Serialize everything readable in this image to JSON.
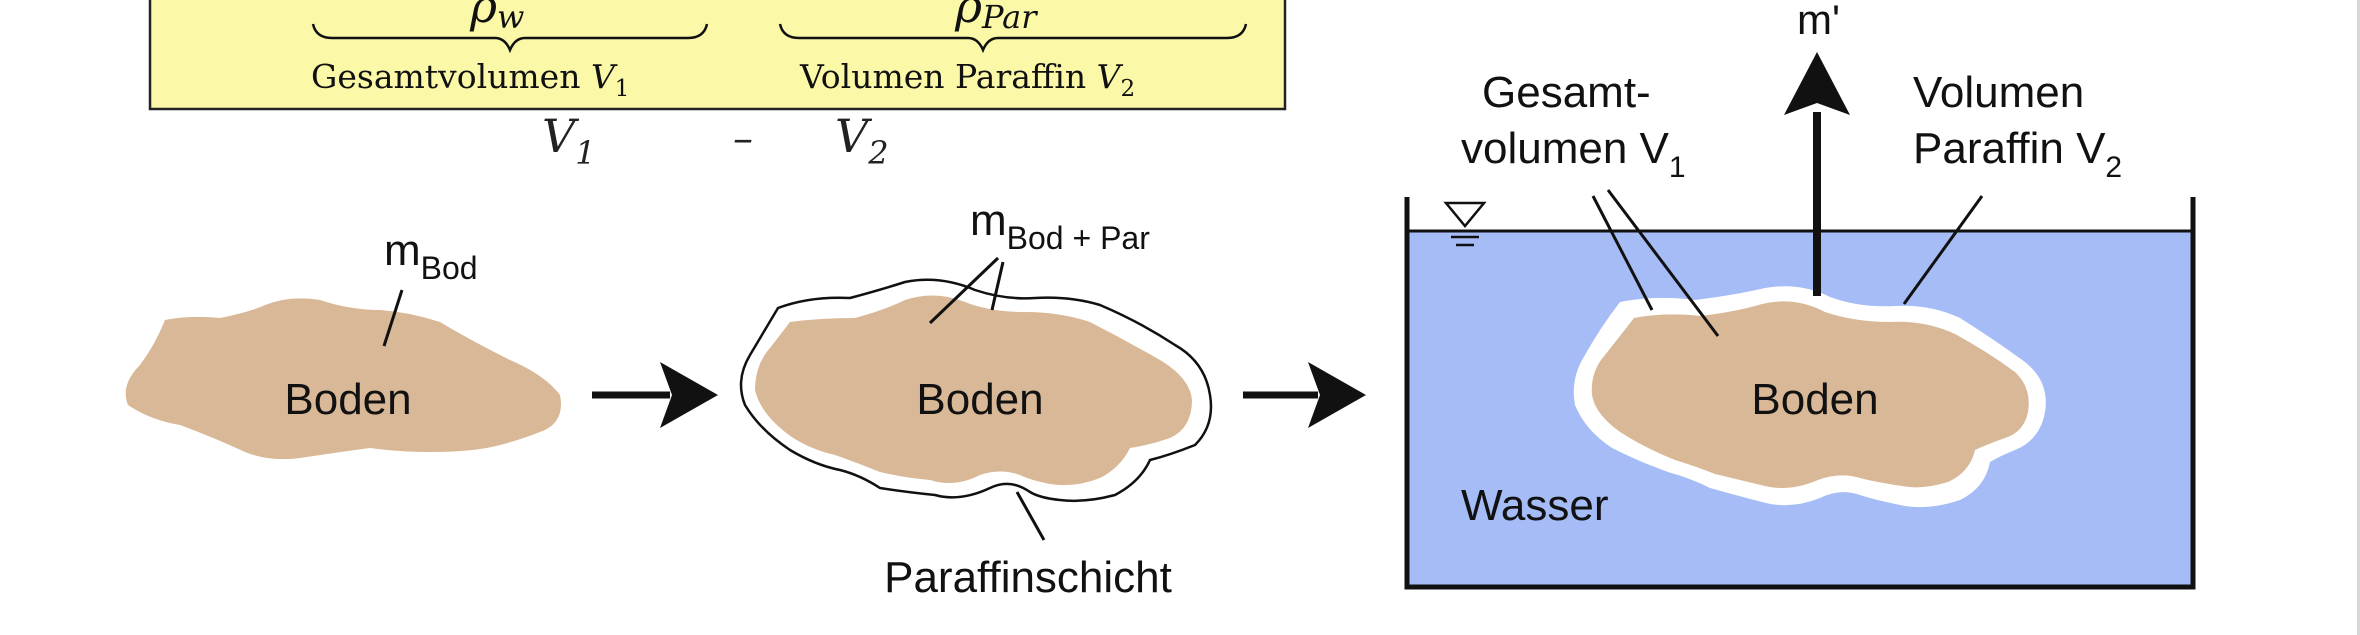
{
  "formula_box": {
    "rho_w": "ρ",
    "rho_w_sub": "w",
    "rho_par": "ρ",
    "rho_par_sub": "Par",
    "label_left_text": "Gesamtvolumen ",
    "label_left_var": "V",
    "label_left_sub": "1",
    "label_right_text": "Volumen Paraffin ",
    "label_right_var": "V",
    "label_right_sub": "2",
    "colors": {
      "box_fill": "#fbf9a8",
      "box_border": "#222222"
    }
  },
  "handwritten": {
    "v1": "V",
    "v1_sub": "1",
    "minus": "–",
    "v2": "V",
    "v2_sub": "2"
  },
  "step1": {
    "mass_label": "m",
    "mass_sub": "Bod",
    "soil_label": "Boden"
  },
  "step2": {
    "mass_label": "m",
    "mass_sub": "Bod + Par",
    "soil_label": "Boden",
    "layer_label": "Paraffinschicht"
  },
  "step3": {
    "force_label": "m'",
    "total_volume_line1": "Gesamt-",
    "total_volume_line2": "volumen V",
    "total_volume_sub": "1",
    "paraffin_volume_line1": "Volumen",
    "paraffin_volume_line2": "Paraffin V",
    "paraffin_volume_sub": "2",
    "soil_label": "Boden",
    "water_label": "Wasser",
    "colors": {
      "water": "#a5bcf7",
      "soil": "#d9b897",
      "paraffin": "#ffffff"
    }
  },
  "colors": {
    "soil": "#d9b897",
    "ink": "#111111"
  }
}
